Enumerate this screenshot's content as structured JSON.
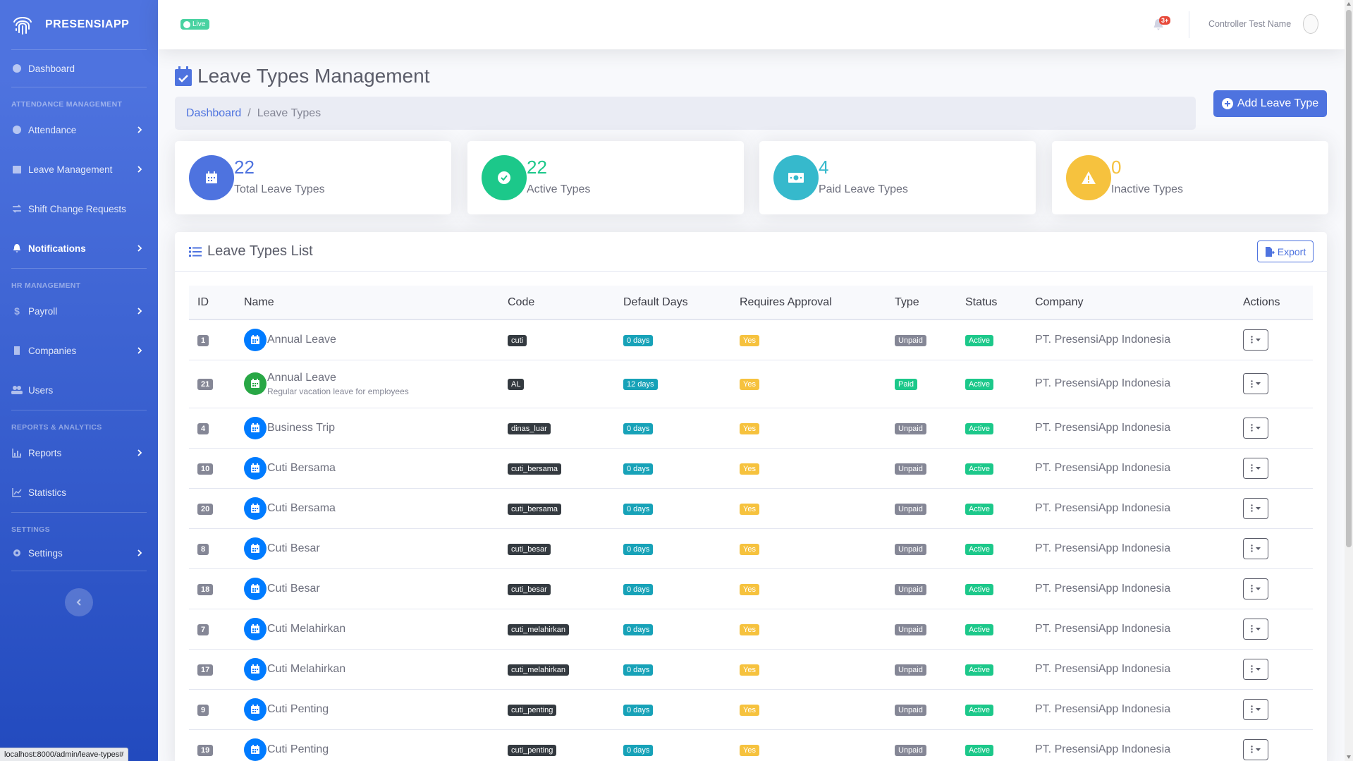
{
  "brand": {
    "name": "PRESENSIAPP"
  },
  "sidebar": {
    "dashboard": "Dashboard",
    "section_attendance": "ATTENDANCE MANAGEMENT",
    "attendance": "Attendance",
    "leave_management": "Leave Management",
    "shift_change": "Shift Change Requests",
    "notifications": "Notifications",
    "section_hr": "HR MANAGEMENT",
    "payroll": "Payroll",
    "companies": "Companies",
    "users": "Users",
    "section_reports": "REPORTS & ANALYTICS",
    "reports": "Reports",
    "statistics": "Statistics",
    "section_settings": "SETTINGS",
    "settings": "Settings"
  },
  "topbar": {
    "live_label": "Live",
    "notification_count": "3+",
    "user_name": "Controller Test Name"
  },
  "status_bar_url": "localhost:8000/admin/leave-types#",
  "page": {
    "title": "Leave Types Management",
    "breadcrumb_home": "Dashboard",
    "breadcrumb_current": "Leave Types",
    "add_button": "Add Leave Type"
  },
  "stats": [
    {
      "value": "22",
      "label": "Total Leave Types",
      "color": "#4e73df"
    },
    {
      "value": "22",
      "label": "Active Types",
      "color": "#1cc88a"
    },
    {
      "value": "4",
      "label": "Paid Leave Types",
      "color": "#36b9cc"
    },
    {
      "value": "0",
      "label": "Inactive Types",
      "color": "#f6c23e"
    }
  ],
  "list": {
    "title": "Leave Types List",
    "export_label": "Export",
    "columns": [
      "ID",
      "Name",
      "Code",
      "Default Days",
      "Requires Approval",
      "Type",
      "Status",
      "Company",
      "Actions"
    ],
    "rows": [
      {
        "id": "1",
        "name": "Annual Leave",
        "desc": "",
        "code": "cuti",
        "days": "0 days",
        "approval": "Yes",
        "type": "Unpaid",
        "status": "Active",
        "company": "PT. PresensiApp Indonesia"
      },
      {
        "id": "21",
        "name": "Annual Leave",
        "desc": "Regular vacation leave for employees",
        "code": "AL",
        "days": "12 days",
        "approval": "Yes",
        "type": "Paid",
        "status": "Active",
        "company": "PT. PresensiApp Indonesia"
      },
      {
        "id": "4",
        "name": "Business Trip",
        "desc": "",
        "code": "dinas_luar",
        "days": "0 days",
        "approval": "Yes",
        "type": "Unpaid",
        "status": "Active",
        "company": "PT. PresensiApp Indonesia"
      },
      {
        "id": "10",
        "name": "Cuti Bersama",
        "desc": "",
        "code": "cuti_bersama",
        "days": "0 days",
        "approval": "Yes",
        "type": "Unpaid",
        "status": "Active",
        "company": "PT. PresensiApp Indonesia"
      },
      {
        "id": "20",
        "name": "Cuti Bersama",
        "desc": "",
        "code": "cuti_bersama",
        "days": "0 days",
        "approval": "Yes",
        "type": "Unpaid",
        "status": "Active",
        "company": "PT. PresensiApp Indonesia"
      },
      {
        "id": "8",
        "name": "Cuti Besar",
        "desc": "",
        "code": "cuti_besar",
        "days": "0 days",
        "approval": "Yes",
        "type": "Unpaid",
        "status": "Active",
        "company": "PT. PresensiApp Indonesia"
      },
      {
        "id": "18",
        "name": "Cuti Besar",
        "desc": "",
        "code": "cuti_besar",
        "days": "0 days",
        "approval": "Yes",
        "type": "Unpaid",
        "status": "Active",
        "company": "PT. PresensiApp Indonesia"
      },
      {
        "id": "7",
        "name": "Cuti Melahirkan",
        "desc": "",
        "code": "cuti_melahirkan",
        "days": "0 days",
        "approval": "Yes",
        "type": "Unpaid",
        "status": "Active",
        "company": "PT. PresensiApp Indonesia"
      },
      {
        "id": "17",
        "name": "Cuti Melahirkan",
        "desc": "",
        "code": "cuti_melahirkan",
        "days": "0 days",
        "approval": "Yes",
        "type": "Unpaid",
        "status": "Active",
        "company": "PT. PresensiApp Indonesia"
      },
      {
        "id": "9",
        "name": "Cuti Penting",
        "desc": "",
        "code": "cuti_penting",
        "days": "0 days",
        "approval": "Yes",
        "type": "Unpaid",
        "status": "Active",
        "company": "PT. PresensiApp Indonesia"
      },
      {
        "id": "19",
        "name": "Cuti Penting",
        "desc": "",
        "code": "cuti_penting",
        "days": "0 days",
        "approval": "Yes",
        "type": "Unpaid",
        "status": "Active",
        "company": "PT. PresensiApp Indonesia"
      }
    ]
  }
}
